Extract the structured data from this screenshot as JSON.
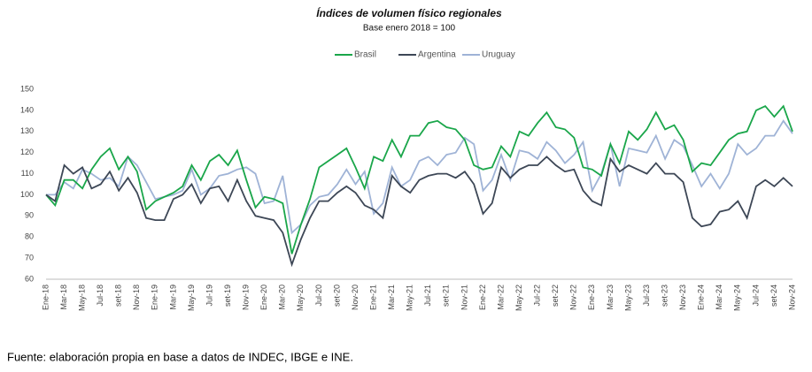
{
  "chart_data": {
    "type": "line",
    "title": "Índices de volumen físico regionales",
    "subtitle": "Base enero 2018 = 100",
    "source": "Fuente: elaboración propia en base a datos de INDEC, IBGE e INE.",
    "categories": [
      "Ene-18",
      null,
      "Mar-18",
      null,
      "May-18",
      null,
      "Jul-18",
      null,
      "set-18",
      null,
      "Nov-18",
      null,
      "Ene-19",
      null,
      "Mar-19",
      null,
      "May-19",
      null,
      "Jul-19",
      null,
      "set-19",
      null,
      "Nov-19",
      null,
      "Ene-20",
      null,
      "Mar-20",
      null,
      "May-20",
      null,
      "Jul-20",
      null,
      "set-20",
      null,
      "Nov-20",
      null,
      "Ene-21",
      null,
      "Mar-21",
      null,
      "May-21",
      null,
      "Jul-21",
      null,
      "set-21",
      null,
      "Nov-21",
      null,
      "Ene-22",
      null,
      "Mar-22",
      null,
      "May-22",
      null,
      "Jul-22",
      null,
      "set-22",
      null,
      "Nov-22",
      null,
      "Ene-23",
      null,
      "Mar-23",
      null,
      "May-23",
      null,
      "Jul-23",
      null,
      "set-23",
      null,
      "Nov-23",
      null,
      "Ene-24",
      null,
      "Mar-24",
      null,
      "May-24",
      null,
      "Jul-24",
      null,
      "set-24",
      null,
      "Nov-24"
    ],
    "series": [
      {
        "name": "Brasil",
        "color": "#1aa64a",
        "values": [
          100,
          95,
          107,
          107,
          103,
          112,
          118,
          122,
          112,
          118,
          111,
          93,
          97,
          99,
          101,
          104,
          114,
          107,
          116,
          119,
          114,
          121,
          107,
          94,
          99,
          98,
          96,
          72,
          86,
          98,
          113,
          116,
          119,
          122,
          113,
          103,
          118,
          116,
          126,
          118,
          128,
          128,
          134,
          135,
          132,
          131,
          126,
          114,
          112,
          113,
          123,
          118,
          130,
          128,
          134,
          139,
          132,
          131,
          127,
          113,
          112,
          109,
          124,
          115,
          130,
          126,
          131,
          139,
          131,
          133,
          126,
          111,
          115,
          114,
          120,
          126,
          129,
          130,
          140,
          142,
          137,
          142,
          130
        ]
      },
      {
        "name": "Argentina",
        "color": "#3d4756",
        "values": [
          100,
          97,
          114,
          110,
          113,
          103,
          105,
          111,
          102,
          108,
          101,
          89,
          88,
          88,
          98,
          100,
          105,
          96,
          103,
          104,
          97,
          107,
          97,
          90,
          89,
          88,
          82,
          67,
          79,
          89,
          97,
          97,
          101,
          104,
          101,
          95,
          93,
          89,
          109,
          104,
          101,
          107,
          109,
          110,
          110,
          108,
          111,
          105,
          91,
          96,
          113,
          108,
          112,
          114,
          114,
          118,
          114,
          111,
          112,
          102,
          97,
          95,
          117,
          111,
          114,
          112,
          110,
          115,
          110,
          110,
          106,
          89,
          85,
          86,
          92,
          93,
          97,
          89,
          104,
          107,
          104,
          108,
          104
        ]
      },
      {
        "name": "Uruguay",
        "color": "#9fb3d6",
        "values": [
          100,
          100,
          106,
          103,
          112,
          110,
          107,
          108,
          104,
          118,
          114,
          106,
          98,
          99,
          100,
          102,
          112,
          100,
          103,
          109,
          110,
          112,
          113,
          110,
          96,
          97,
          109,
          82,
          86,
          95,
          99,
          100,
          105,
          112,
          105,
          111,
          91,
          96,
          113,
          104,
          107,
          116,
          118,
          114,
          119,
          120,
          127,
          124,
          102,
          107,
          119,
          107,
          121,
          120,
          117,
          125,
          121,
          115,
          119,
          125,
          102,
          110,
          124,
          104,
          122,
          121,
          120,
          128,
          117,
          126,
          123,
          114,
          104,
          110,
          103,
          110,
          124,
          119,
          122,
          128,
          128,
          135,
          129
        ]
      }
    ],
    "ylim": [
      60,
      150
    ],
    "yticks": [
      60,
      70,
      80,
      90,
      100,
      110,
      120,
      130,
      140,
      150
    ],
    "grid": false,
    "legend": "top"
  }
}
